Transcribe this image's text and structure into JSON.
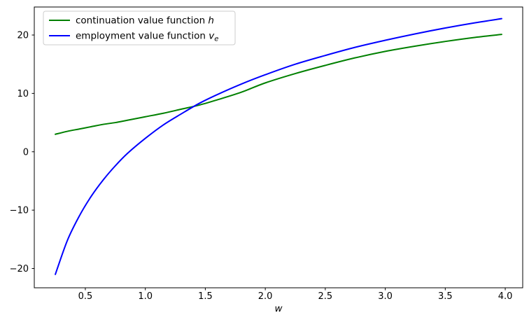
{
  "figure": {
    "background": "#ffffff",
    "border_color": "#000000"
  },
  "chart_data": {
    "type": "line",
    "title": "",
    "xlabel": "w",
    "ylabel": "",
    "xlim": [
      0.0745,
      4.1455
    ],
    "ylim": [
      -23.3,
      24.8
    ],
    "xticks": [
      0.5,
      1.0,
      1.5,
      2.0,
      2.5,
      3.0,
      3.5,
      4.0
    ],
    "xtick_labels": [
      "0.5",
      "1.0",
      "1.5",
      "2.0",
      "2.5",
      "3.0",
      "3.5",
      "4.0"
    ],
    "yticks": [
      -20,
      -10,
      0,
      10,
      20
    ],
    "ytick_labels": [
      "−20",
      "−10",
      "0",
      "10",
      "20"
    ],
    "grid": false,
    "legend_position": "upper left",
    "x": [
      0.25,
      0.35,
      0.45,
      0.55,
      0.65,
      0.75,
      0.85,
      1.0,
      1.15,
      1.3,
      1.45,
      1.6,
      1.8,
      2.0,
      2.25,
      2.5,
      2.75,
      3.0,
      3.25,
      3.5,
      3.75,
      3.97
    ],
    "series": [
      {
        "name": "continuation value function h",
        "label_parts": [
          {
            "t": "continuation value function ",
            "i": false,
            "sub": false
          },
          {
            "t": "h",
            "i": true,
            "sub": false
          }
        ],
        "color": "#008000",
        "line_width": 2,
        "values": [
          3.0,
          3.5,
          3.9,
          4.3,
          4.7,
          5.0,
          5.4,
          6.0,
          6.6,
          7.3,
          8.0,
          8.9,
          10.2,
          11.8,
          13.4,
          14.8,
          16.1,
          17.2,
          18.1,
          18.9,
          19.6,
          20.1
        ]
      },
      {
        "name": "employment value function v_e",
        "label_parts": [
          {
            "t": "employment value function ",
            "i": false,
            "sub": false
          },
          {
            "t": "v",
            "i": true,
            "sub": false
          },
          {
            "t": "e",
            "i": true,
            "sub": true
          }
        ],
        "color": "#0000ff",
        "line_width": 2,
        "values": [
          -21.0,
          -15.2,
          -11.0,
          -7.6,
          -4.8,
          -2.4,
          -0.3,
          2.3,
          4.6,
          6.5,
          8.3,
          9.8,
          11.6,
          13.2,
          15.0,
          16.5,
          17.9,
          19.1,
          20.2,
          21.2,
          22.1,
          22.8
        ]
      }
    ]
  }
}
